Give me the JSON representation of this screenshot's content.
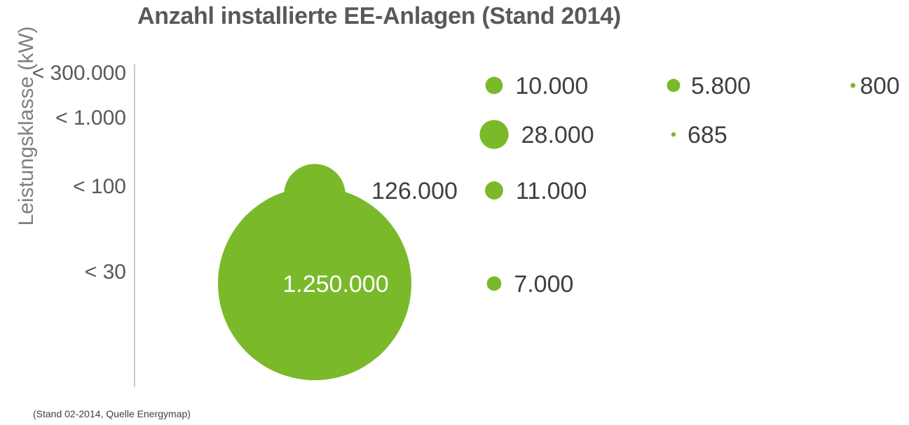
{
  "chart_data": {
    "type": "bubble",
    "title": "Anzahl installierte EE-Anlagen (Stand 2014)",
    "ylabel": "Leistungsklasse (kW)",
    "footnote": "(Stand 02-2014, Quelle Energymap)",
    "y_categories": [
      "< 30",
      "< 100",
      "< 1.000",
      "< 300.000"
    ],
    "bubble_color": "#7ab929",
    "points": [
      {
        "col": 0,
        "y": "< 30",
        "value": 1250000,
        "label": "1.250.000"
      },
      {
        "col": 0,
        "y": "< 100",
        "value": 126000,
        "label": "126.000"
      },
      {
        "col": 1,
        "y": "< 30",
        "value": 7000,
        "label": "7.000"
      },
      {
        "col": 1,
        "y": "< 100",
        "value": 11000,
        "label": "11.000"
      },
      {
        "col": 1,
        "y": "< 1.000",
        "value": 28000,
        "label": "28.000"
      },
      {
        "col": 1,
        "y": "< 300.000",
        "value": 10000,
        "label": "10.000"
      },
      {
        "col": 2,
        "y": "< 1.000",
        "value": 685,
        "label": "685"
      },
      {
        "col": 2,
        "y": "< 300.000",
        "value": 5800,
        "label": "5.800"
      },
      {
        "col": 3,
        "y": "< 300.000",
        "value": 800,
        "label": "800"
      }
    ]
  }
}
